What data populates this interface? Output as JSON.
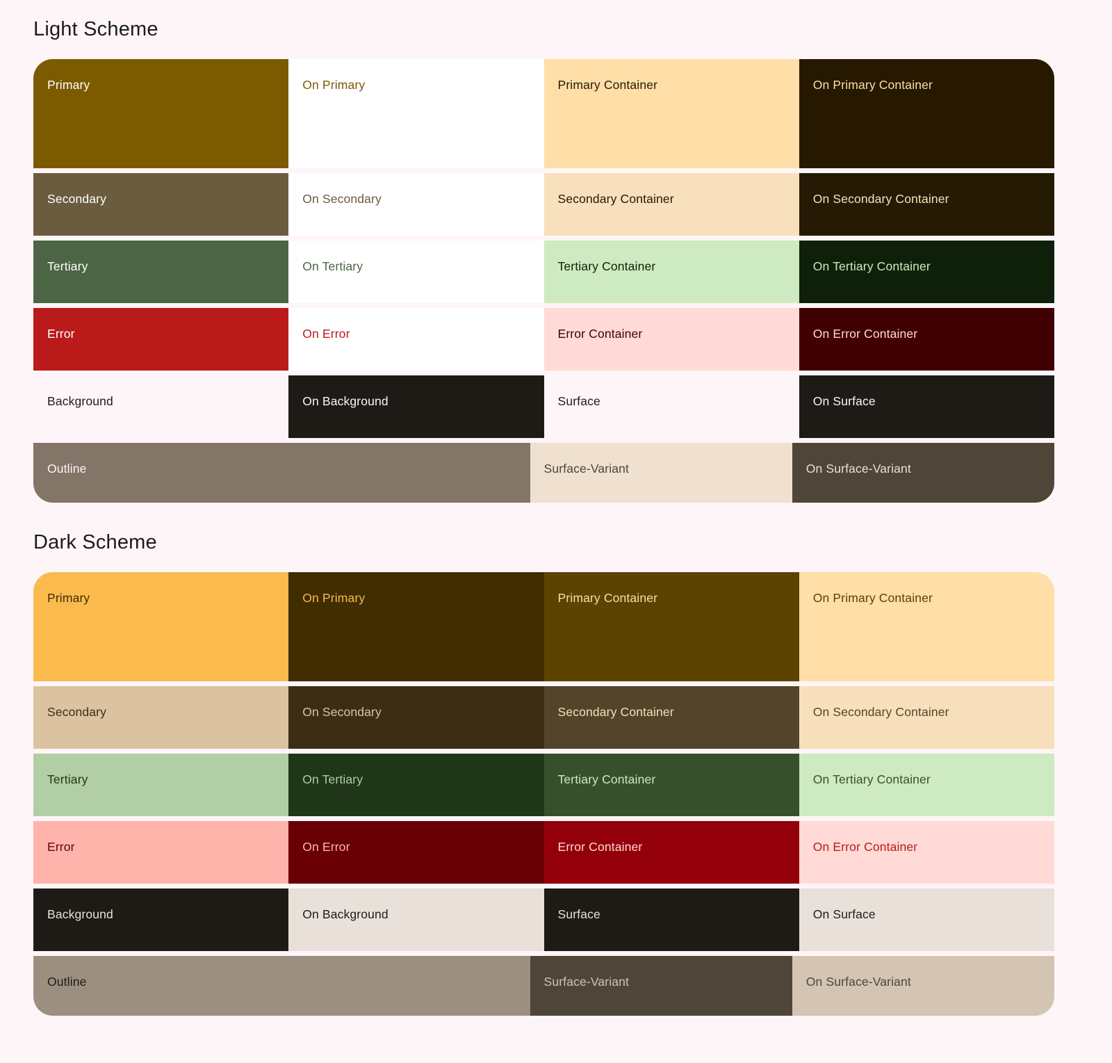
{
  "page": {
    "background": "#FDF5F7"
  },
  "schemes": [
    {
      "id": "light",
      "title": "Light Scheme",
      "rows": [
        {
          "size": "tall",
          "cells": [
            {
              "label": "Primary",
              "bg": "#7B5A00",
              "fg": "#FFFFFF",
              "span": 1
            },
            {
              "label": "On Primary",
              "bg": "#FFFFFF",
              "fg": "#7B5A00",
              "span": 1
            },
            {
              "label": "Primary Container",
              "bg": "#FFDEA8",
              "fg": "#271900",
              "span": 1
            },
            {
              "label": "On Primary Container",
              "bg": "#271900",
              "fg": "#FFDEA8",
              "span": 1
            }
          ]
        },
        {
          "size": "normal",
          "cells": [
            {
              "label": "Secondary",
              "bg": "#6C5C3F",
              "fg": "#FFFFFF",
              "span": 1
            },
            {
              "label": "On Secondary",
              "bg": "#FFFFFF",
              "fg": "#6C5C3F",
              "span": 1
            },
            {
              "label": "Secondary Container",
              "bg": "#F7E0BB",
              "fg": "#251A04",
              "span": 1
            },
            {
              "label": "On Secondary Container",
              "bg": "#251A04",
              "fg": "#F7E0BB",
              "span": 1
            }
          ]
        },
        {
          "size": "normal",
          "cells": [
            {
              "label": "Tertiary",
              "bg": "#4C6544",
              "fg": "#FFFFFF",
              "span": 1
            },
            {
              "label": "On Tertiary",
              "bg": "#FFFFFF",
              "fg": "#4C6544",
              "span": 1
            },
            {
              "label": "Tertiary Container",
              "bg": "#CEEAC0",
              "fg": "#0E2009",
              "span": 1
            },
            {
              "label": "On Tertiary Container",
              "bg": "#0E2009",
              "fg": "#CEEAC0",
              "span": 1
            }
          ]
        },
        {
          "size": "normal",
          "cells": [
            {
              "label": "Error",
              "bg": "#BA1A1A",
              "fg": "#FFFFFF",
              "span": 1
            },
            {
              "label": "On Error",
              "bg": "#FFFFFF",
              "fg": "#BA1A1A",
              "span": 1
            },
            {
              "label": "Error Container",
              "bg": "#FFDAD6",
              "fg": "#410002",
              "span": 1
            },
            {
              "label": "On Error Container",
              "bg": "#410002",
              "fg": "#FFDAD6",
              "span": 1
            }
          ]
        },
        {
          "size": "normal",
          "cells": [
            {
              "label": "Background",
              "bg": "#FDF5F7",
              "fg": "#1E1B16",
              "span": 1
            },
            {
              "label": "On Background",
              "bg": "#1E1B16",
              "fg": "#FDF5F7",
              "span": 1
            },
            {
              "label": "Surface",
              "bg": "#FDF5F7",
              "fg": "#1E1B16",
              "span": 1
            },
            {
              "label": "On Surface",
              "bg": "#1E1B16",
              "fg": "#FDF5F7",
              "span": 1
            }
          ]
        },
        {
          "size": "last",
          "cells": [
            {
              "label": "Outline",
              "bg": "#837568",
              "fg": "#FDF5F7",
              "span": 2
            },
            {
              "label": "Surface-Variant",
              "bg": "#EFE0CF",
              "fg": "#4F4539",
              "span": 1
            },
            {
              "label": "On Surface-Variant",
              "bg": "#4F4539",
              "fg": "#EFE0CF",
              "span": 1
            }
          ]
        }
      ]
    },
    {
      "id": "dark",
      "title": "Dark Scheme",
      "rows": [
        {
          "size": "tall",
          "cells": [
            {
              "label": "Primary",
              "bg": "#FBBA4E",
              "fg": "#402D00",
              "span": 1
            },
            {
              "label": "On Primary",
              "bg": "#402D00",
              "fg": "#FBBA4E",
              "span": 1
            },
            {
              "label": "Primary Container",
              "bg": "#5C4300",
              "fg": "#FFDEA8",
              "span": 1
            },
            {
              "label": "On Primary Container",
              "bg": "#FFDEA8",
              "fg": "#5C4300",
              "span": 1
            }
          ]
        },
        {
          "size": "normal",
          "cells": [
            {
              "label": "Secondary",
              "bg": "#DBC3A1",
              "fg": "#3B2E15",
              "span": 1
            },
            {
              "label": "On Secondary",
              "bg": "#3B2E15",
              "fg": "#DBC3A1",
              "span": 1
            },
            {
              "label": "Secondary Container",
              "bg": "#53452A",
              "fg": "#F8DFBB",
              "span": 1
            },
            {
              "label": "On Secondary Container",
              "bg": "#F8DFBB",
              "fg": "#53452A",
              "span": 1
            }
          ]
        },
        {
          "size": "normal",
          "cells": [
            {
              "label": "Tertiary",
              "bg": "#B2CEA4",
              "fg": "#203619",
              "span": 1
            },
            {
              "label": "On Tertiary",
              "bg": "#203619",
              "fg": "#B2CEA4",
              "span": 1
            },
            {
              "label": "Tertiary Container",
              "bg": "#36502C",
              "fg": "#CEEAC0",
              "span": 1
            },
            {
              "label": "On Tertiary Container",
              "bg": "#CEEAC0",
              "fg": "#36502C",
              "span": 1
            }
          ]
        },
        {
          "size": "normal",
          "cells": [
            {
              "label": "Error",
              "bg": "#FFB4AB",
              "fg": "#690005",
              "span": 1
            },
            {
              "label": "On Error",
              "bg": "#690005",
              "fg": "#FFB4AB",
              "span": 1
            },
            {
              "label": "Error Container",
              "bg": "#93000A",
              "fg": "#FFDAD6",
              "span": 1
            },
            {
              "label": "On Error Container",
              "bg": "#FFDAD6",
              "fg": "#BA1A1A",
              "span": 1
            }
          ]
        },
        {
          "size": "normal",
          "cells": [
            {
              "label": "Background",
              "bg": "#1E1B16",
              "fg": "#E9E1D9",
              "span": 1
            },
            {
              "label": "On Background",
              "bg": "#E9E1D9",
              "fg": "#1E1B16",
              "span": 1
            },
            {
              "label": "Surface",
              "bg": "#1E1B16",
              "fg": "#E9E1D9",
              "span": 1
            },
            {
              "label": "On Surface",
              "bg": "#E9E1D9",
              "fg": "#1E1B16",
              "span": 1
            }
          ]
        },
        {
          "size": "last",
          "cells": [
            {
              "label": "Outline",
              "bg": "#9C8F80",
              "fg": "#1E1B16",
              "span": 2
            },
            {
              "label": "Surface-Variant",
              "bg": "#4F4539",
              "fg": "#D3C4B4",
              "span": 1
            },
            {
              "label": "On Surface-Variant",
              "bg": "#D3C4B4",
              "fg": "#4F4539",
              "span": 1
            }
          ]
        }
      ]
    }
  ]
}
